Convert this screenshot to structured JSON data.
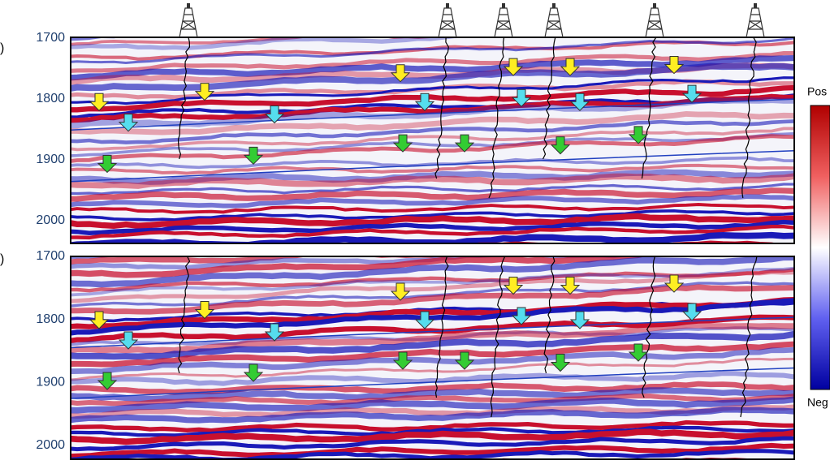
{
  "panels": [
    {
      "label": ")",
      "yticks": [
        "1700",
        "1800",
        "1900",
        "2000"
      ]
    },
    {
      "label": ")",
      "yticks": [
        "1700",
        "1800",
        "1900",
        "2000"
      ]
    }
  ],
  "colorbar": {
    "top": "Pos",
    "bottom": "Neg"
  }
}
